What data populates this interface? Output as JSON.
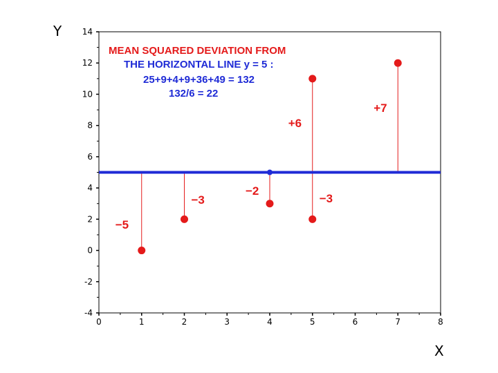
{
  "chart_data": {
    "type": "scatter",
    "xlabel": "X",
    "ylabel": "Y",
    "xlim": [
      0,
      8
    ],
    "ylim": [
      -4,
      14
    ],
    "xticks": [
      0,
      1,
      2,
      3,
      4,
      5,
      6,
      7,
      8
    ],
    "yticks": [
      14,
      12,
      10,
      8,
      6,
      4,
      2,
      0,
      -2,
      -4
    ],
    "grid": false,
    "horizontal_line": {
      "y": 5,
      "color": "#1f2bd6",
      "marker_x": 4
    },
    "points": [
      {
        "x": 1,
        "y": 0
      },
      {
        "x": 2,
        "y": 2
      },
      {
        "x": 4,
        "y": 3
      },
      {
        "x": 5,
        "y": 2
      },
      {
        "x": 5,
        "y": 11
      },
      {
        "x": 7,
        "y": 12
      }
    ],
    "point_color": "#e41a1a",
    "deviation_labels": [
      {
        "text": "−5",
        "x": 1,
        "y": 1.6
      },
      {
        "text": "−3",
        "x": 2,
        "y": 3.2
      },
      {
        "text": "−2",
        "x": 4,
        "y": 3.8
      },
      {
        "text": "+6",
        "x": 5,
        "y": 8.1
      },
      {
        "text": "−3",
        "x": 5,
        "y": 3.3
      },
      {
        "text": "+7",
        "x": 7,
        "y": 9.0
      }
    ],
    "annotation": {
      "line1": "MEAN SQUARED DEVIATION FROM",
      "line2": "THE HORIZONTAL LINE  y = 5 :",
      "line3": "25+9+4+9+36+49 = 132",
      "line4": "132/6 = 22",
      "line1_color": "#e41a1a",
      "other_color": "#1f2bd6"
    }
  }
}
